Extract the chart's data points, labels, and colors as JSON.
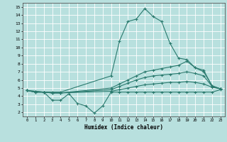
{
  "xlabel": "Humidex (Indice chaleur)",
  "ylabel": "",
  "xlim": [
    -0.5,
    23.5
  ],
  "ylim": [
    1.5,
    15.5
  ],
  "yticks": [
    2,
    3,
    4,
    5,
    6,
    7,
    8,
    9,
    10,
    11,
    12,
    13,
    14,
    15
  ],
  "xticks": [
    0,
    1,
    2,
    3,
    4,
    5,
    6,
    7,
    8,
    9,
    10,
    11,
    12,
    13,
    14,
    15,
    16,
    17,
    18,
    19,
    20,
    21,
    22,
    23
  ],
  "bg_color": "#b8e0de",
  "line_color": "#2a7a6e",
  "grid_color": "#ffffff",
  "lines": [
    {
      "x": [
        0,
        1,
        2,
        3,
        4,
        10,
        11,
        12,
        13,
        14,
        15,
        16,
        17,
        18,
        19,
        20,
        21,
        22,
        23
      ],
      "y": [
        4.7,
        4.6,
        4.5,
        4.5,
        4.5,
        6.5,
        10.8,
        13.2,
        13.5,
        14.8,
        13.8,
        13.2,
        10.5,
        8.7,
        8.5,
        7.5,
        7.2,
        5.2,
        4.9
      ]
    },
    {
      "x": [
        0,
        1,
        2,
        3,
        4,
        5,
        6,
        7,
        8,
        9,
        10,
        11,
        12,
        13,
        14,
        15,
        16,
        17,
        18,
        19,
        20,
        21,
        22,
        23
      ],
      "y": [
        4.7,
        4.6,
        4.5,
        3.5,
        3.5,
        4.3,
        3.1,
        2.8,
        1.9,
        2.8,
        4.5,
        4.5,
        4.5,
        4.5,
        4.5,
        4.5,
        4.5,
        4.5,
        4.5,
        4.5,
        4.5,
        4.5,
        4.5,
        4.8
      ]
    },
    {
      "x": [
        0,
        1,
        2,
        3,
        4,
        10,
        11,
        12,
        13,
        14,
        15,
        16,
        17,
        18,
        19,
        20,
        21,
        22,
        23
      ],
      "y": [
        4.7,
        4.5,
        4.5,
        4.4,
        4.4,
        5.0,
        5.5,
        6.0,
        6.5,
        7.0,
        7.2,
        7.4,
        7.6,
        7.8,
        8.3,
        7.5,
        7.0,
        5.3,
        4.9
      ]
    },
    {
      "x": [
        0,
        1,
        2,
        3,
        4,
        10,
        11,
        12,
        13,
        14,
        15,
        16,
        17,
        18,
        19,
        20,
        21,
        22,
        23
      ],
      "y": [
        4.7,
        4.5,
        4.5,
        4.4,
        4.4,
        4.8,
        5.2,
        5.6,
        6.0,
        6.3,
        6.5,
        6.6,
        6.7,
        6.8,
        7.0,
        6.8,
        6.5,
        5.2,
        4.9
      ]
    },
    {
      "x": [
        0,
        1,
        2,
        3,
        4,
        10,
        11,
        12,
        13,
        14,
        15,
        16,
        17,
        18,
        19,
        20,
        21,
        22,
        23
      ],
      "y": [
        4.7,
        4.5,
        4.5,
        4.4,
        4.4,
        4.6,
        4.8,
        5.0,
        5.2,
        5.4,
        5.5,
        5.6,
        5.7,
        5.7,
        5.8,
        5.7,
        5.5,
        5.1,
        4.9
      ]
    }
  ]
}
